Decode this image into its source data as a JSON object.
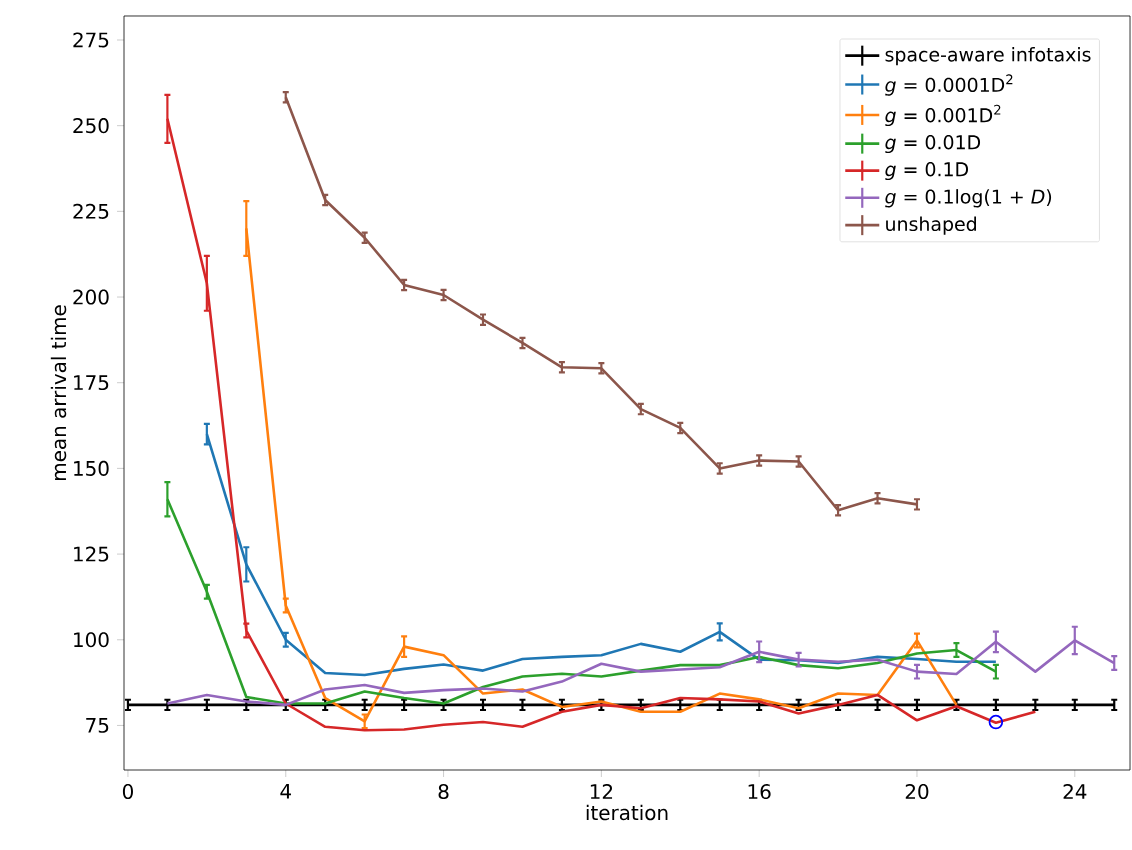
{
  "chart_data": {
    "type": "line",
    "xlabel": "iteration",
    "ylabel": "mean arrival time",
    "xlim": [
      -0.1,
      25.4
    ],
    "ylim": [
      62,
      282
    ],
    "xticks": [
      0,
      4,
      8,
      12,
      16,
      20,
      24
    ],
    "yticks": [
      75,
      100,
      125,
      150,
      175,
      200,
      225,
      250,
      275
    ],
    "legend": "top right",
    "grid": false,
    "series": [
      {
        "name": "space-aware infotaxis",
        "color": "#000000",
        "x": [
          0,
          1,
          2,
          3,
          4,
          5,
          6,
          7,
          8,
          9,
          10,
          11,
          12,
          13,
          14,
          15,
          16,
          17,
          18,
          19,
          20,
          21,
          22,
          23,
          24,
          25
        ],
        "values": [
          81,
          81,
          81,
          81,
          81,
          81,
          81,
          81,
          81,
          81,
          81,
          81,
          81,
          81,
          81,
          81,
          81,
          81,
          81,
          81,
          81,
          81,
          81,
          81,
          81,
          81
        ],
        "errors": [
          1.5,
          1.5,
          1.5,
          1.5,
          1.5,
          1.5,
          1.5,
          1.5,
          1.5,
          1.5,
          1.5,
          1.5,
          1.5,
          1.5,
          1.5,
          1.5,
          1.5,
          1.5,
          1.5,
          1.5,
          1.5,
          1.5,
          1.5,
          1.5,
          1.5,
          1.5
        ]
      },
      {
        "name": "*g* = 0.0001D$^{2}$",
        "color": "#1f77b4",
        "x": [
          2,
          3,
          4,
          5,
          6,
          7,
          8,
          9,
          10,
          11,
          12,
          13,
          14,
          15,
          16,
          17,
          18,
          19,
          20,
          21,
          22
        ],
        "values": [
          160,
          122,
          100,
          90.3,
          89.7,
          91.5,
          92.8,
          91,
          94.4,
          95,
          95.5,
          98.8,
          96.5,
          102.3,
          94.2,
          94,
          93.2,
          95,
          94.4,
          93.6,
          93.6
        ],
        "errors": [
          3,
          5,
          2,
          null,
          null,
          null,
          null,
          null,
          null,
          null,
          null,
          null,
          null,
          2.5,
          null,
          null,
          null,
          null,
          null,
          null,
          null
        ]
      },
      {
        "name": "*g* = 0.001D$^{2}$",
        "color": "#ff7f0e",
        "x": [
          3,
          4,
          5,
          6,
          7,
          8,
          9,
          10,
          11,
          12,
          13,
          14,
          15,
          16,
          17,
          18,
          19,
          20,
          21
        ],
        "values": [
          220,
          110,
          83,
          76.2,
          98,
          95.5,
          84.3,
          85.5,
          80.4,
          82,
          79,
          79,
          84.3,
          82.6,
          80,
          84.3,
          83.9,
          99.8,
          81
        ],
        "errors": [
          8,
          2,
          null,
          2,
          3,
          null,
          null,
          null,
          null,
          null,
          null,
          null,
          null,
          null,
          null,
          null,
          null,
          2,
          null
        ]
      },
      {
        "name": "*g* = 0.01D",
        "color": "#2ca02c",
        "x": [
          1,
          2,
          3,
          4,
          5,
          6,
          7,
          8,
          9,
          10,
          11,
          12,
          13,
          14,
          15,
          16,
          17,
          18,
          19,
          20,
          21,
          22
        ],
        "values": [
          141,
          114,
          83.3,
          81.4,
          81.4,
          84.9,
          83,
          81.4,
          86.2,
          89.3,
          90.1,
          89.3,
          91,
          92.6,
          92.6,
          95,
          92.6,
          91.7,
          93.2,
          96,
          97,
          90.7
        ],
        "errors": [
          5,
          2,
          null,
          null,
          null,
          null,
          null,
          null,
          null,
          null,
          null,
          null,
          null,
          null,
          null,
          null,
          null,
          null,
          null,
          null,
          2,
          2
        ]
      },
      {
        "name": "*g* = 0.1D",
        "color": "#d62728",
        "x": [
          1,
          2,
          3,
          4,
          5,
          6,
          7,
          8,
          9,
          10,
          11,
          12,
          13,
          14,
          15,
          16,
          17,
          18,
          19,
          20,
          21,
          22,
          23
        ],
        "values": [
          252,
          204,
          102.7,
          81.4,
          74.6,
          73.6,
          73.8,
          75.2,
          76,
          74.6,
          79,
          81,
          80,
          83,
          82.6,
          82,
          78.5,
          81,
          83.9,
          76.5,
          80.6,
          75.8,
          79
        ],
        "errors": [
          7,
          8,
          2,
          null,
          null,
          null,
          null,
          null,
          null,
          null,
          null,
          null,
          null,
          null,
          null,
          null,
          null,
          null,
          null,
          null,
          null,
          null,
          null
        ]
      },
      {
        "name": "*g* = 0.1log(1 + *D*)",
        "color": "#9467bd",
        "x": [
          1,
          2,
          3,
          4,
          5,
          6,
          7,
          8,
          9,
          10,
          11,
          12,
          13,
          14,
          15,
          16,
          17,
          18,
          19,
          20,
          21,
          22,
          23,
          24,
          25
        ],
        "values": [
          81.4,
          83.9,
          82,
          81,
          85.5,
          86.8,
          84.5,
          85.3,
          85.8,
          84.9,
          87.8,
          93,
          90.7,
          91.3,
          92,
          96.5,
          94.2,
          93.6,
          94.2,
          90.7,
          90,
          99.4,
          90.7,
          99.8,
          93.2
        ],
        "errors": [
          null,
          null,
          null,
          null,
          null,
          null,
          null,
          null,
          null,
          null,
          null,
          null,
          null,
          null,
          null,
          3,
          2,
          null,
          null,
          2,
          null,
          3,
          null,
          4,
          2
        ]
      },
      {
        "name": "unshaped",
        "color": "#8c564b",
        "x": [
          4,
          5,
          6,
          7,
          8,
          9,
          10,
          11,
          12,
          13,
          14,
          15,
          16,
          17,
          18,
          19,
          20
        ],
        "values": [
          258.3,
          228.3,
          217.3,
          203.5,
          200.6,
          193.4,
          186.6,
          179.5,
          179.2,
          167.3,
          161.8,
          150,
          152.3,
          152,
          137.8,
          141.3,
          139.5
        ],
        "errors": [
          1.5,
          1.5,
          1.5,
          1.5,
          1.5,
          1.5,
          1.5,
          1.5,
          1.5,
          1.5,
          1.5,
          1.5,
          1.5,
          1.5,
          1.5,
          1.5,
          1.5
        ]
      },
      {
        "type": "scatter",
        "marker": "circle",
        "color": "#0000ff",
        "x": [
          22
        ],
        "values": [
          76
        ]
      }
    ]
  }
}
